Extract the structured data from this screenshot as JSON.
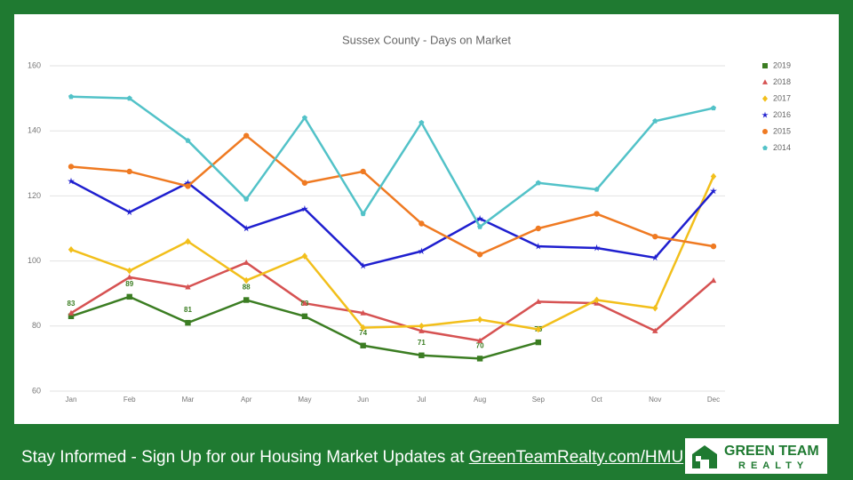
{
  "chart_data": {
    "type": "line",
    "title": "Sussex County - Days on Market",
    "categories": [
      "Jan",
      "Feb",
      "Mar",
      "Apr",
      "May",
      "Jun",
      "Jul",
      "Aug",
      "Sep",
      "Oct",
      "Nov",
      "Dec"
    ],
    "ylim": [
      60,
      160
    ],
    "yticks": [
      60,
      80,
      100,
      120,
      140,
      160
    ],
    "grid": true,
    "legend": "right",
    "series": [
      {
        "name": "2019",
        "color": "#3b7d22",
        "marker": "square",
        "data_labels": true,
        "values": [
          83,
          89,
          81,
          88,
          83,
          74,
          71,
          70,
          75,
          null,
          null,
          null
        ]
      },
      {
        "name": "2018",
        "color": "#d65252",
        "marker": "triangle",
        "values": [
          84,
          95,
          92,
          99.5,
          87,
          84,
          78.5,
          75.5,
          87.5,
          87,
          78.5,
          94
        ]
      },
      {
        "name": "2017",
        "color": "#f2bf1b",
        "marker": "diamond",
        "values": [
          103.5,
          97,
          106,
          94,
          101.5,
          79.5,
          80,
          82,
          79,
          88,
          85.5,
          126
        ]
      },
      {
        "name": "2016",
        "color": "#1f1fcf",
        "marker": "star",
        "values": [
          124.5,
          115,
          124,
          110,
          116,
          98.5,
          103,
          113,
          104.5,
          104,
          101,
          121.5
        ]
      },
      {
        "name": "2015",
        "color": "#ef7a22",
        "marker": "circle",
        "values": [
          129,
          127.5,
          123,
          138.5,
          124,
          127.5,
          111.5,
          102,
          110,
          114.5,
          107.5,
          104.5
        ]
      },
      {
        "name": "2014",
        "color": "#52c2c8",
        "marker": "pentagon",
        "values": [
          150.5,
          150,
          137,
          119,
          144,
          114.5,
          142.5,
          110.5,
          124,
          122,
          143,
          147
        ]
      }
    ]
  },
  "footer": {
    "text": "Stay Informed - Sign Up for our Housing Market Updates at",
    "link": "GreenTeamRealty.com/HMU"
  },
  "logo": {
    "line1": "GREEN TEAM",
    "line2": "REALTY"
  }
}
